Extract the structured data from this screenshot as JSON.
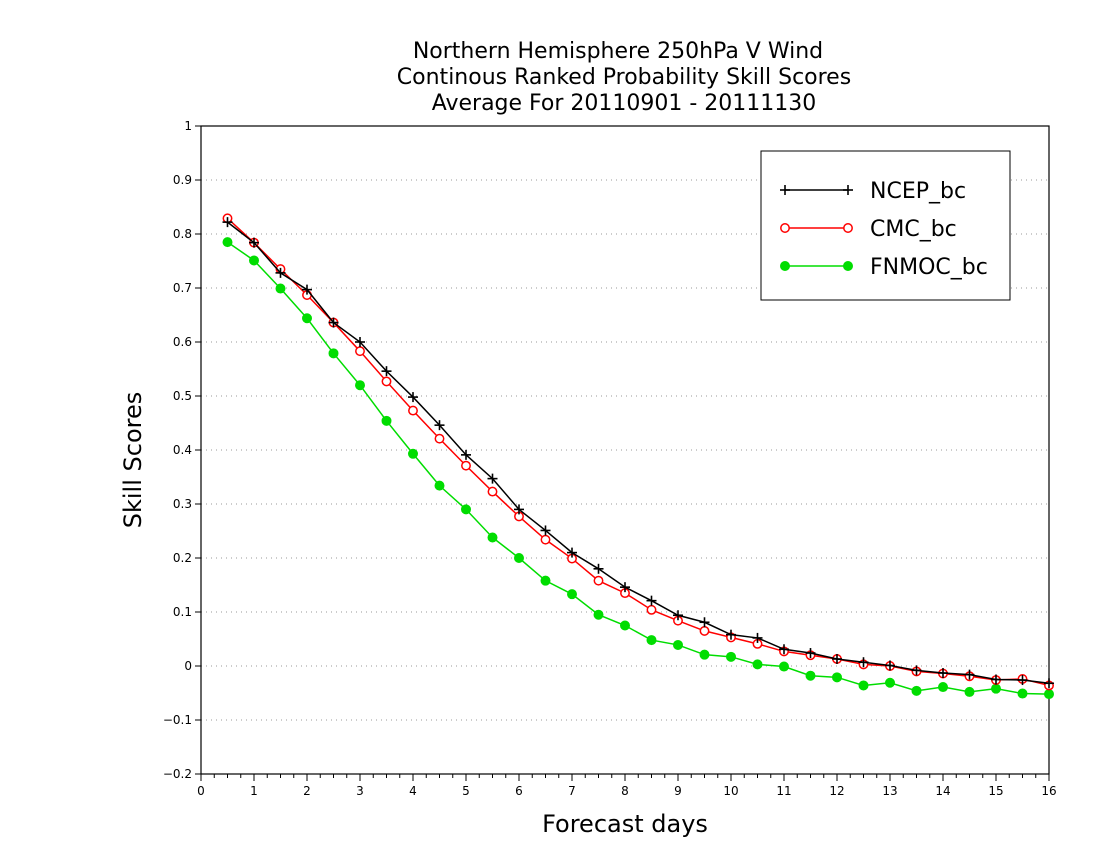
{
  "chart_data": {
    "type": "line",
    "title_lines": [
      "Northern Hemisphere 250hPa V Wind",
      "Continous Ranked Probability Skill Scores",
      "Average For 20110901 - 20111130"
    ],
    "xlabel": "Forecast days",
    "ylabel": "Skill Scores",
    "xlim": [
      0,
      16
    ],
    "ylim": [
      -0.2,
      1
    ],
    "xticks": [
      "0",
      "1",
      "2",
      "3",
      "4",
      "5",
      "6",
      "7",
      "8",
      "9",
      "10",
      "11",
      "12",
      "13",
      "14",
      "15",
      "16"
    ],
    "yticks": [
      "−0.2",
      "−0.1",
      "0",
      "0.1",
      "0.2",
      "0.3",
      "0.4",
      "0.5",
      "0.6",
      "0.7",
      "0.8",
      "0.9",
      "1"
    ],
    "grid": "horizontal-dotted",
    "legend_position": "top-right",
    "x": [
      0.5,
      1,
      1.5,
      2,
      2.5,
      3,
      3.5,
      4,
      4.5,
      5,
      5.5,
      6,
      6.5,
      7,
      7.5,
      8,
      8.5,
      9,
      9.5,
      10,
      10.5,
      11,
      11.5,
      12,
      12.5,
      13,
      13.5,
      14,
      14.5,
      15,
      15.5,
      16
    ],
    "series": [
      {
        "name": "NCEP_bc",
        "color": "#000000",
        "marker": "plus",
        "values": [
          0.822,
          0.784,
          0.728,
          0.697,
          0.636,
          0.6,
          0.546,
          0.498,
          0.446,
          0.391,
          0.347,
          0.29,
          0.251,
          0.21,
          0.18,
          0.146,
          0.121,
          0.094,
          0.081,
          0.058,
          0.052,
          0.031,
          0.024,
          0.013,
          0.007,
          0.001,
          -0.008,
          -0.013,
          -0.016,
          -0.025,
          -0.026,
          -0.032
        ]
      },
      {
        "name": "CMC_bc",
        "color": "#ff0000",
        "marker": "open-circle",
        "values": [
          0.829,
          0.784,
          0.735,
          0.687,
          0.636,
          0.583,
          0.527,
          0.473,
          0.421,
          0.371,
          0.323,
          0.277,
          0.234,
          0.199,
          0.158,
          0.135,
          0.104,
          0.084,
          0.065,
          0.053,
          0.041,
          0.027,
          0.02,
          0.013,
          0.003,
          0.0,
          -0.01,
          -0.014,
          -0.019,
          -0.026,
          -0.024,
          -0.036
        ]
      },
      {
        "name": "FNMOC_bc",
        "color": "#00dd00",
        "marker": "filled-circle",
        "values": [
          0.785,
          0.751,
          0.699,
          0.644,
          0.579,
          0.52,
          0.454,
          0.393,
          0.334,
          0.29,
          0.238,
          0.2,
          0.158,
          0.133,
          0.095,
          0.075,
          0.048,
          0.039,
          0.021,
          0.017,
          0.003,
          -0.001,
          -0.018,
          -0.021,
          -0.036,
          -0.031,
          -0.046,
          -0.039,
          -0.048,
          -0.042,
          -0.051,
          -0.052
        ]
      }
    ]
  }
}
